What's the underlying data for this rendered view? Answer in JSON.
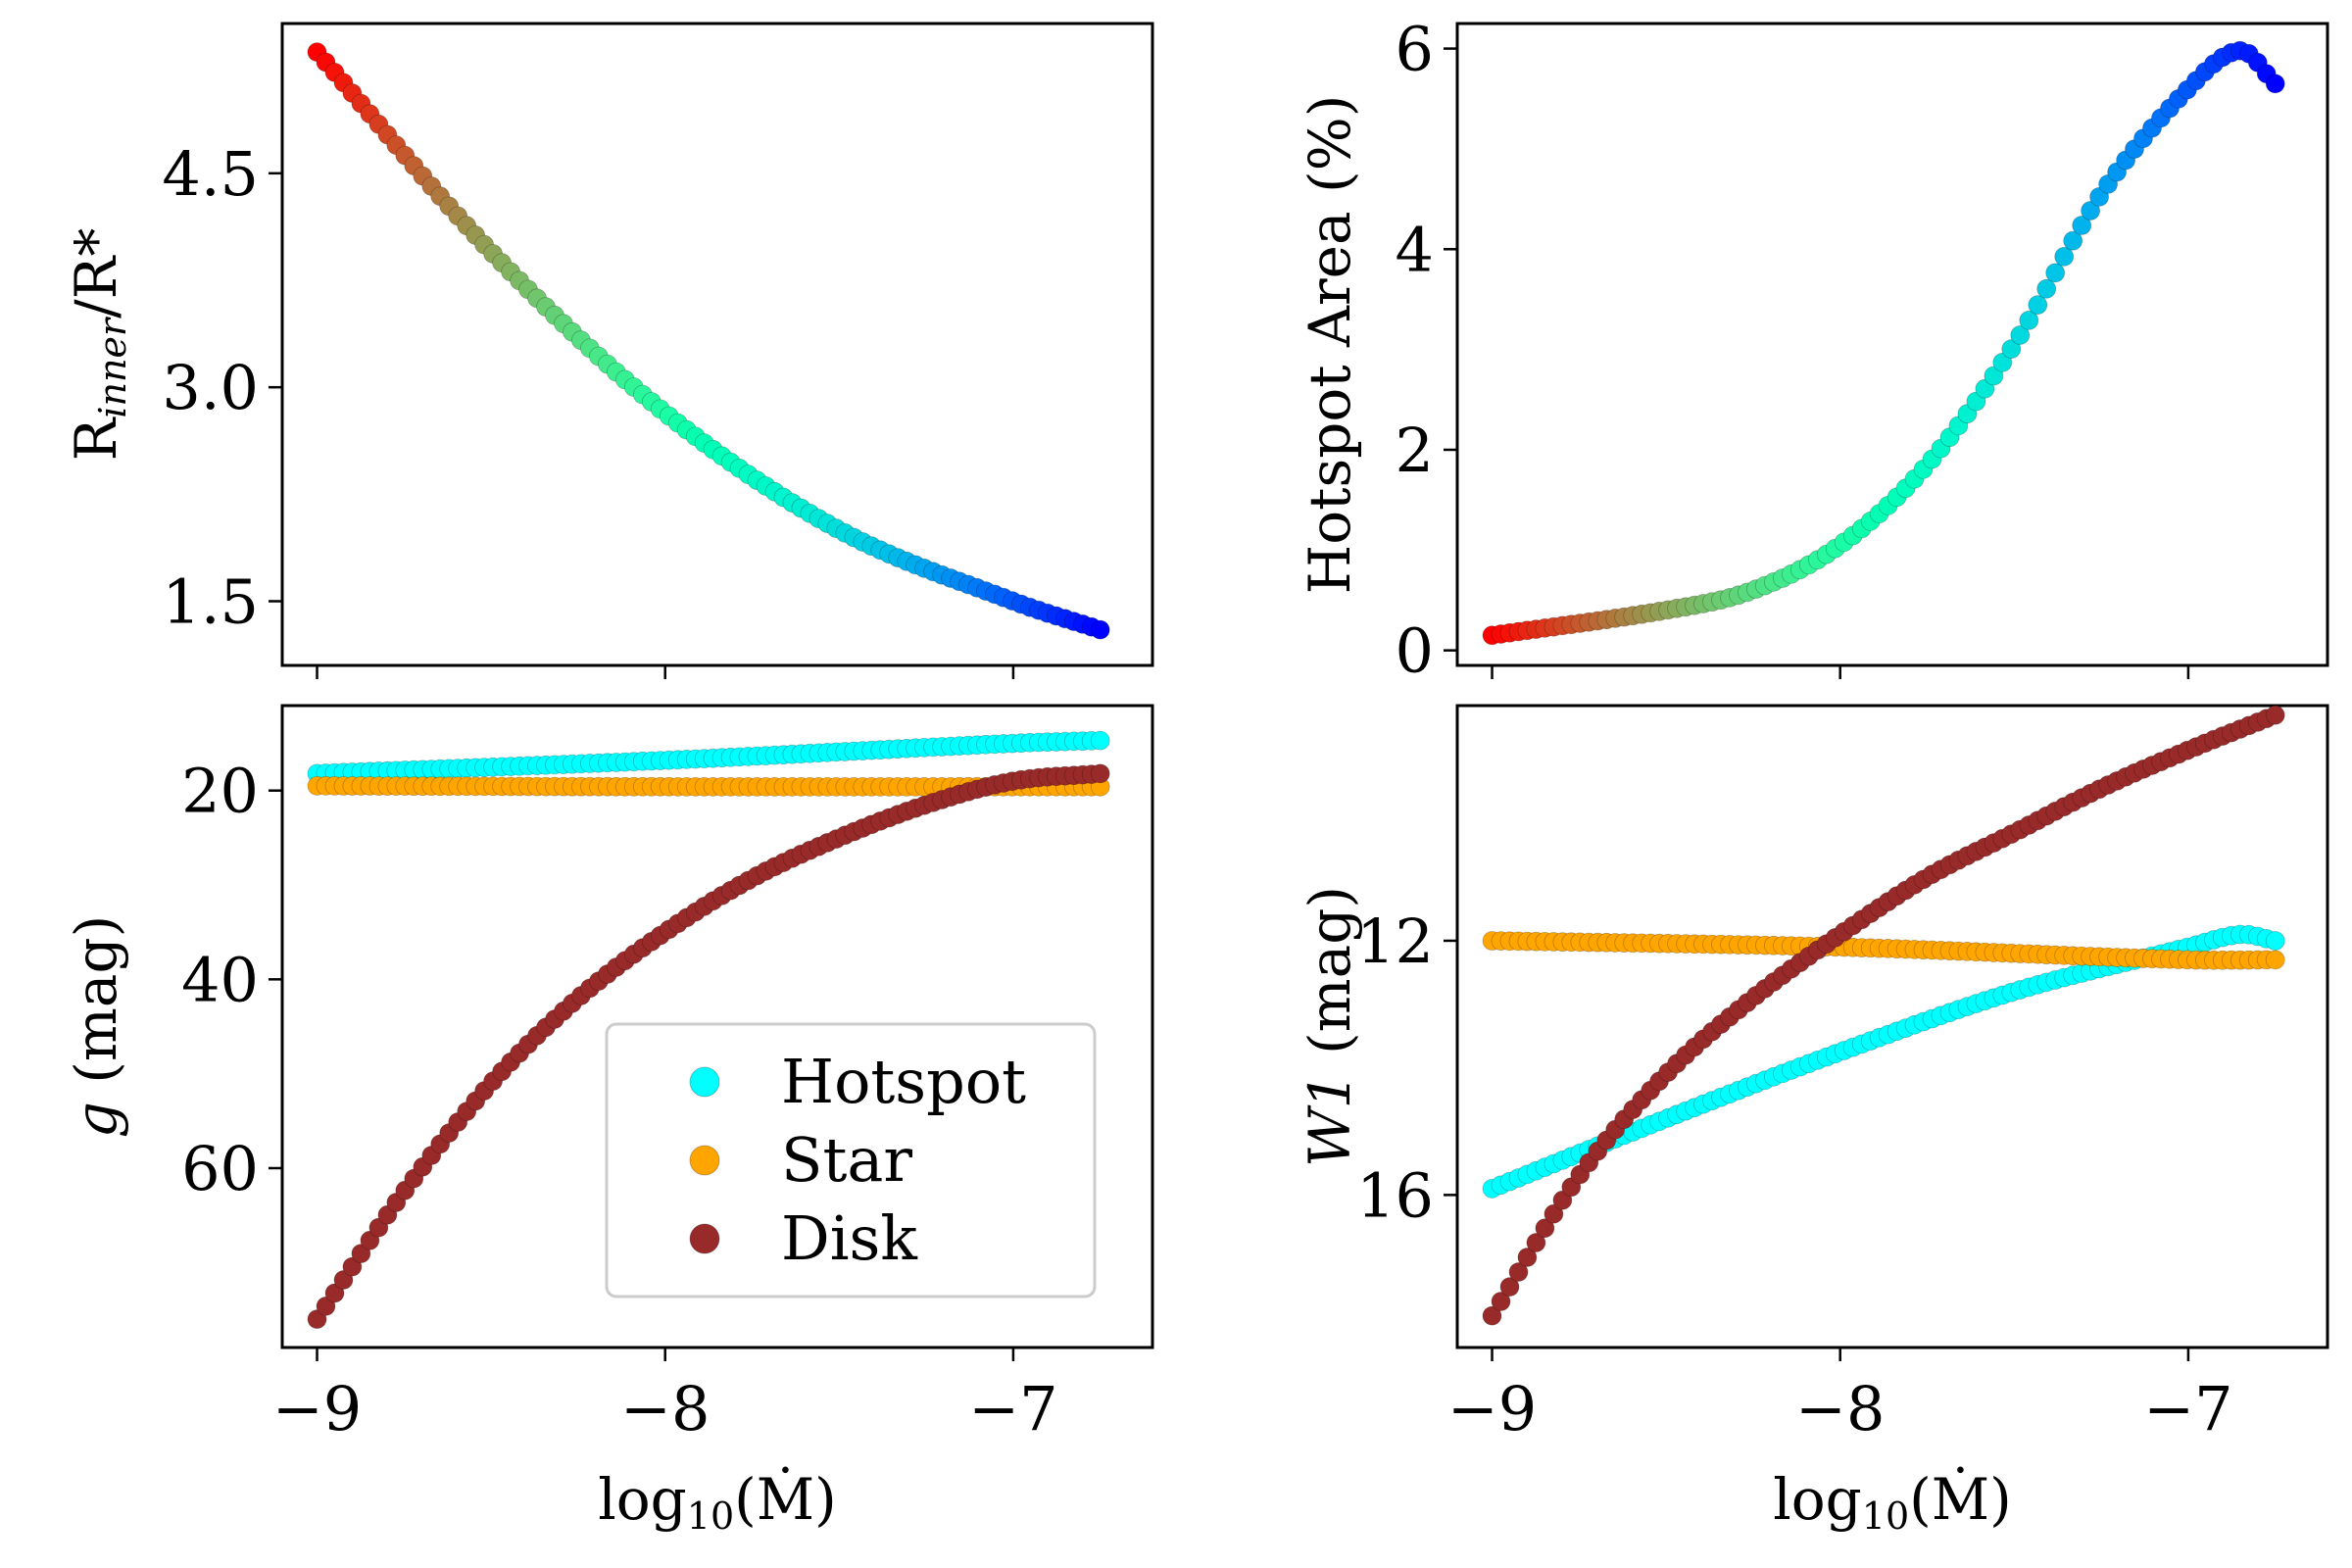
{
  "chart_data": [
    {
      "id": "tl",
      "type": "scatter",
      "ylabel_text": "R",
      "ylabel_sub": "inner",
      "ylabel_suffix": "/R*",
      "xlim": [
        -9.1,
        -6.6
      ],
      "ylim": [
        1.05,
        5.55
      ],
      "xticks": [
        -9,
        -8,
        -7
      ],
      "yticks": [
        1.5,
        3.0,
        4.5
      ],
      "ytick_labels": [
        "1.5",
        "3.0",
        "4.5"
      ],
      "colormap": "rainbow",
      "series": [
        {
          "name": "Rinner",
          "x_start": -9.0,
          "x_end": -6.75,
          "n": 90,
          "key_points": [
            [
              -9.0,
              5.35
            ],
            [
              -8.5,
              3.95
            ],
            [
              -8.0,
              2.82
            ],
            [
              -7.5,
              2.0
            ],
            [
              -7.0,
              1.5
            ],
            [
              -6.75,
              1.3
            ]
          ]
        }
      ]
    },
    {
      "id": "tr",
      "type": "scatter",
      "ylabel": "Hotspot Area (%)",
      "xlim": [
        -9.1,
        -6.6
      ],
      "ylim": [
        -0.15,
        6.25
      ],
      "xticks": [
        -9,
        -8,
        -7
      ],
      "yticks": [
        0,
        2,
        4,
        6
      ],
      "ytick_labels": [
        "0",
        "2",
        "4",
        "6"
      ],
      "colormap": "rainbow",
      "series": [
        {
          "name": "Hotspot Area",
          "x_start": -9.0,
          "x_end": -6.75,
          "n": 90,
          "key_points": [
            [
              -9.0,
              0.15
            ],
            [
              -8.5,
              0.4
            ],
            [
              -8.25,
              0.6
            ],
            [
              -8.0,
              1.05
            ],
            [
              -7.75,
              1.85
            ],
            [
              -7.5,
              3.05
            ],
            [
              -7.25,
              4.55
            ],
            [
              -7.0,
              5.6
            ],
            [
              -6.85,
              5.98
            ],
            [
              -6.75,
              5.65
            ]
          ]
        }
      ]
    },
    {
      "id": "bl",
      "type": "scatter",
      "ylabel_italic": "g",
      "ylabel_suffix": " (mag)",
      "inverted_y": true,
      "xlim": [
        -9.1,
        -6.6
      ],
      "ylim": [
        79,
        11
      ],
      "xticks": [
        -9,
        -8,
        -7
      ],
      "yticks": [
        20,
        40,
        60
      ],
      "ytick_labels": [
        "20",
        "40",
        "60"
      ],
      "series": [
        {
          "name": "Hotspot",
          "color": "#00ffff",
          "x_start": -9.0,
          "x_end": -6.75,
          "n": 90,
          "key_points": [
            [
              -9.0,
              18.2
            ],
            [
              -8.0,
              16.8
            ],
            [
              -7.0,
              15.0
            ],
            [
              -6.75,
              14.7
            ]
          ]
        },
        {
          "name": "Star",
          "color": "#ffa500",
          "x_start": -9.0,
          "x_end": -6.75,
          "n": 90,
          "key_points": [
            [
              -9.0,
              19.5
            ],
            [
              -8.0,
              19.6
            ],
            [
              -7.0,
              19.6
            ],
            [
              -6.75,
              19.6
            ]
          ]
        },
        {
          "name": "Disk",
          "color": "#992a2a",
          "x_start": -9.0,
          "x_end": -6.75,
          "n": 90,
          "key_points": [
            [
              -9.0,
              76.0
            ],
            [
              -8.75,
              62.5
            ],
            [
              -8.5,
              51.0
            ],
            [
              -8.25,
              42.0
            ],
            [
              -8.0,
              35.0
            ],
            [
              -7.75,
              29.3
            ],
            [
              -7.5,
              25.0
            ],
            [
              -7.25,
              21.5
            ],
            [
              -7.0,
              19.0
            ],
            [
              -6.75,
              18.2
            ]
          ]
        }
      ]
    },
    {
      "id": "br",
      "type": "scatter",
      "ylabel_italic": "W1",
      "ylabel_suffix": " (mag)",
      "inverted_y": true,
      "xlim": [
        -9.1,
        -6.6
      ],
      "ylim": [
        18.4,
        8.3
      ],
      "xticks": [
        -9,
        -8,
        -7
      ],
      "yticks": [
        12,
        16
      ],
      "ytick_labels": [
        "12",
        "16"
      ],
      "series": [
        {
          "name": "Hotspot",
          "color": "#00ffff",
          "x_start": -9.0,
          "x_end": -6.75,
          "n": 90,
          "key_points": [
            [
              -9.0,
              15.9
            ],
            [
              -8.5,
              14.8
            ],
            [
              -8.0,
              13.75
            ],
            [
              -7.5,
              12.8
            ],
            [
              -7.0,
              12.1
            ],
            [
              -6.85,
              11.9
            ],
            [
              -6.75,
              12.0
            ]
          ]
        },
        {
          "name": "Star",
          "color": "#ffa500",
          "x_start": -9.0,
          "x_end": -6.75,
          "n": 90,
          "key_points": [
            [
              -9.0,
              12.0
            ],
            [
              -8.0,
              12.1
            ],
            [
              -7.0,
              12.3
            ],
            [
              -6.75,
              12.3
            ]
          ]
        },
        {
          "name": "Disk",
          "color": "#992a2a",
          "x_start": -9.0,
          "x_end": -6.75,
          "n": 90,
          "key_points": [
            [
              -9.0,
              17.9
            ],
            [
              -8.75,
              15.7
            ],
            [
              -8.5,
              14.1
            ],
            [
              -8.25,
              12.9
            ],
            [
              -8.0,
              11.9
            ],
            [
              -7.75,
              11.0
            ],
            [
              -7.5,
              10.3
            ],
            [
              -7.25,
              9.6
            ],
            [
              -7.0,
              9.0
            ],
            [
              -6.75,
              8.45
            ]
          ]
        }
      ]
    }
  ],
  "shared": {
    "xtick_labels": [
      "−9",
      "−8",
      "−7"
    ],
    "xlabel_main": "log",
    "xlabel_sub": "10",
    "xlabel_arg": "(Ṁ)"
  },
  "legend": {
    "location": "lower-right",
    "items": [
      {
        "label": "Hotspot",
        "color": "#00ffff"
      },
      {
        "label": "Star",
        "color": "#ffa500"
      },
      {
        "label": "Disk",
        "color": "#992a2a"
      }
    ]
  }
}
